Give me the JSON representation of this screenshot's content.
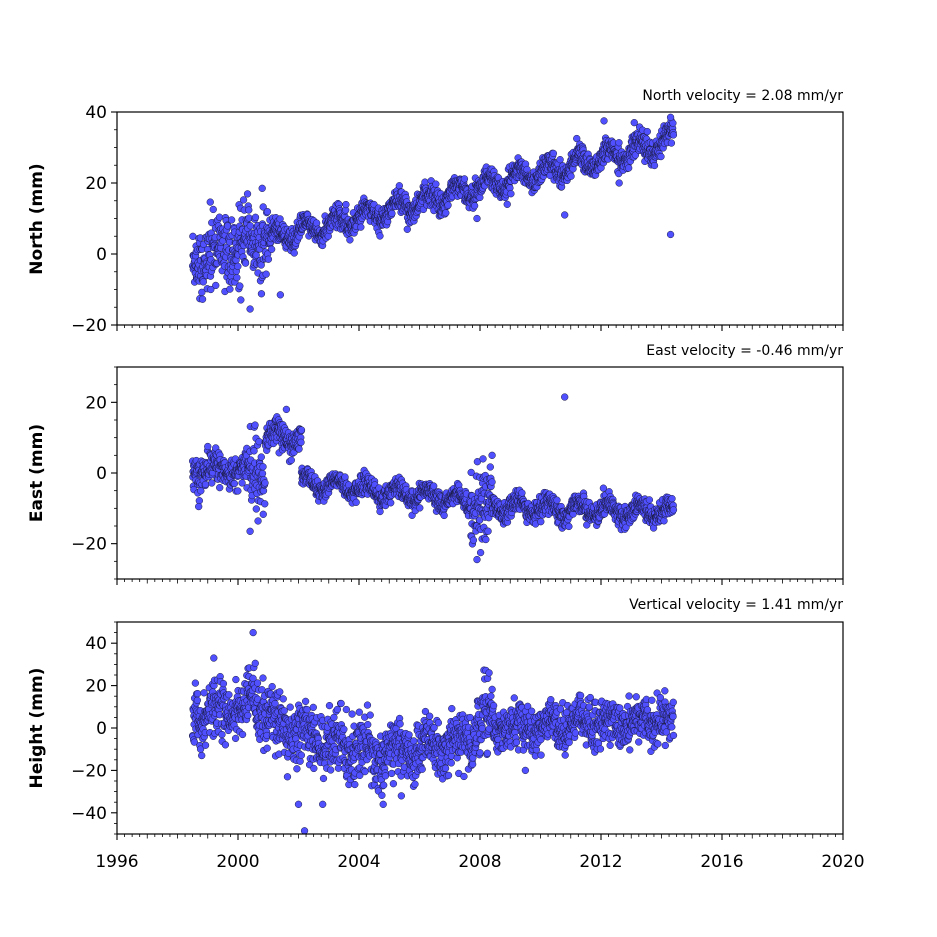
{
  "chart_data": [
    {
      "type": "scatter",
      "title": "North velocity = 2.08 mm/yr",
      "ylabel": "North (mm)",
      "xlim": [
        1996,
        2020
      ],
      "ylim": [
        -20,
        40
      ],
      "yticks": [
        -20,
        0,
        20,
        40
      ],
      "grid": false,
      "marker_color": "#5050ff",
      "marker_edge": "#1a1a40",
      "trend": {
        "start": 1998.5,
        "end": 2014.4,
        "intercept_at_start": -1.0,
        "slope_mm_per_yr": 2.08
      },
      "seasonal": {
        "amplitude": 2.5,
        "period_yr": 1.0
      },
      "noise_level": 1.6,
      "segments": [
        {
          "start": 1998.5,
          "end": 2001.0,
          "extra_noise": 3.2
        }
      ],
      "outliers": [
        {
          "x": 2000.8,
          "y": 18.5
        },
        {
          "x": 2001.4,
          "y": -11.5
        },
        {
          "x": 2010.8,
          "y": 11.0
        },
        {
          "x": 2012.1,
          "y": 37.5
        },
        {
          "x": 2013.1,
          "y": 37.0
        },
        {
          "x": 2014.3,
          "y": 38.5
        },
        {
          "x": 2014.3,
          "y": 5.5
        },
        {
          "x": 2007.9,
          "y": 10.0
        },
        {
          "x": 2008.9,
          "y": 14.0
        },
        {
          "x": 2012.6,
          "y": 20.0
        },
        {
          "x": 2000.4,
          "y": -15.5
        },
        {
          "x": 1999.1,
          "y": -10.0
        }
      ]
    },
    {
      "type": "scatter",
      "title": "East velocity = -0.46 mm/yr",
      "ylabel": "East (mm)",
      "xlim": [
        1996,
        2020
      ],
      "ylim": [
        -30,
        30
      ],
      "yticks": [
        -20,
        0,
        20
      ],
      "grid": false,
      "marker_color": "#5050ff",
      "marker_edge": "#1a1a40",
      "seasonal": {
        "amplitude": 2.0,
        "period_yr": 1.0
      },
      "segments": [
        {
          "start": 1998.5,
          "end": 2000.4,
          "y0": 1.0,
          "y1": 1.0,
          "noise": 2.2
        },
        {
          "start": 2000.4,
          "end": 2000.9,
          "y0": 0.0,
          "y1": 0.0,
          "noise": 5.0
        },
        {
          "start": 2000.9,
          "end": 2002.1,
          "y0": 10.5,
          "y1": 10.0,
          "noise": 1.8
        },
        {
          "start": 2002.1,
          "end": 2007.7,
          "y0": -2.5,
          "y1": -8.0,
          "noise": 1.3
        },
        {
          "start": 2007.7,
          "end": 2008.4,
          "y0": -10.0,
          "y1": -10.0,
          "noise": 6.0
        },
        {
          "start": 2008.4,
          "end": 2014.4,
          "y0": -9.5,
          "y1": -11.0,
          "noise": 1.5
        }
      ],
      "outliers": [
        {
          "x": 2010.8,
          "y": 21.5
        },
        {
          "x": 1998.7,
          "y": -9.5
        },
        {
          "x": 2000.4,
          "y": -16.5
        },
        {
          "x": 2007.9,
          "y": -24.5
        },
        {
          "x": 2008.1,
          "y": 4.0
        },
        {
          "x": 2008.4,
          "y": 5.0
        },
        {
          "x": 2001.6,
          "y": 18.0
        },
        {
          "x": 1999.0,
          "y": 7.5
        }
      ]
    },
    {
      "type": "scatter",
      "title": "Vertical velocity = 1.41 mm/yr",
      "ylabel": "Height (mm)",
      "xlim": [
        1996,
        2020
      ],
      "ylim": [
        -50,
        50
      ],
      "yticks": [
        -40,
        -20,
        0,
        20,
        40
      ],
      "grid": false,
      "marker_color": "#5050ff",
      "marker_edge": "#1a1a40",
      "seasonal": {
        "amplitude": 3.0,
        "period_yr": 1.0
      },
      "segments": [
        {
          "start": 1998.5,
          "end": 2000.3,
          "y0": 6.0,
          "y1": 10.0,
          "noise": 6.5
        },
        {
          "start": 2000.3,
          "end": 2001.2,
          "y0": 14.0,
          "y1": 6.0,
          "noise": 7.0
        },
        {
          "start": 2001.2,
          "end": 2004.8,
          "y0": 2.0,
          "y1": -14.0,
          "noise": 7.0
        },
        {
          "start": 2004.8,
          "end": 2007.9,
          "y0": -12.0,
          "y1": -4.0,
          "noise": 6.0
        },
        {
          "start": 2007.9,
          "end": 2008.5,
          "y0": 5.0,
          "y1": 3.0,
          "noise": 7.5
        },
        {
          "start": 2008.5,
          "end": 2014.4,
          "y0": 0.0,
          "y1": 4.0,
          "noise": 5.0
        }
      ],
      "outliers": [
        {
          "x": 2000.5,
          "y": 45.0
        },
        {
          "x": 1999.2,
          "y": 33.0
        },
        {
          "x": 2002.2,
          "y": -48.5
        },
        {
          "x": 2002.0,
          "y": -36.0
        },
        {
          "x": 2002.8,
          "y": -36.0
        },
        {
          "x": 2004.8,
          "y": -36.0
        },
        {
          "x": 2005.4,
          "y": -32.0
        },
        {
          "x": 2008.3,
          "y": 26.0
        },
        {
          "x": 1998.8,
          "y": -13.0
        },
        {
          "x": 2009.5,
          "y": -20.0
        }
      ]
    }
  ],
  "shared_x_axis": {
    "tick_labels": [
      "1996",
      "2000",
      "2004",
      "2008",
      "2012",
      "2016",
      "2020"
    ],
    "minor_tick_step_yr": 0.25,
    "major_tick_step_yr": 1
  }
}
